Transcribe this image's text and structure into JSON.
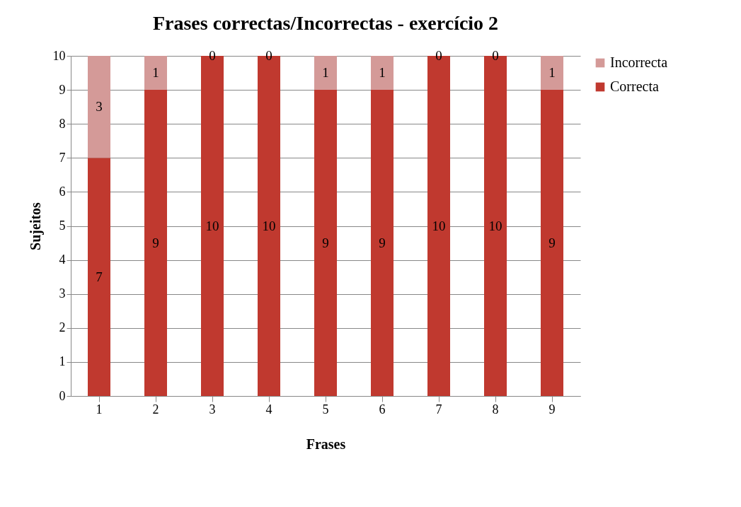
{
  "chart_data": {
    "type": "bar",
    "title": "Frases correctas/Incorrectas - exercício 2",
    "xlabel": "Frases",
    "ylabel": "Sujeitos",
    "categories": [
      "1",
      "2",
      "3",
      "4",
      "5",
      "6",
      "7",
      "8",
      "9"
    ],
    "series": [
      {
        "name": "Correcta",
        "color": "#c0392f",
        "values": [
          7,
          9,
          10,
          10,
          9,
          9,
          10,
          10,
          9
        ]
      },
      {
        "name": "Incorrecta",
        "color": "#d49a98",
        "values": [
          3,
          1,
          0,
          0,
          1,
          1,
          0,
          0,
          1
        ]
      }
    ],
    "stacked": true,
    "ylim": [
      0,
      10
    ],
    "yticks": [
      0,
      1,
      2,
      3,
      4,
      5,
      6,
      7,
      8,
      9,
      10
    ],
    "grid": "y",
    "legend": "right",
    "data_labels": true
  }
}
